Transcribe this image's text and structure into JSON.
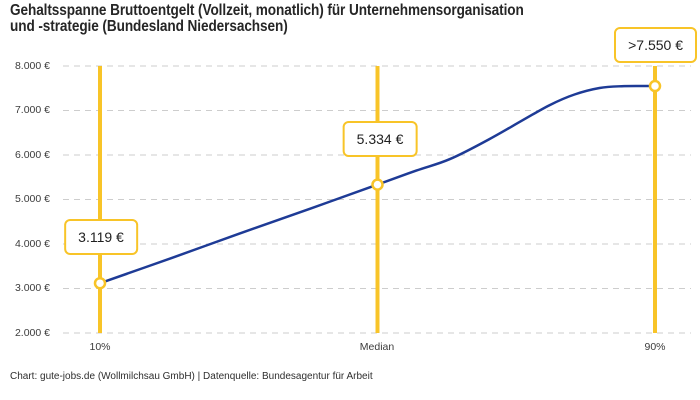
{
  "header": {
    "title_lines": [
      "Gehaltsspanne Bruttoentgelt (Vollzeit, monatlich) für Unternehmensorganisation",
      "und -strategie (Bundesland Niedersachsen)"
    ]
  },
  "chart_data": {
    "type": "line",
    "title": "Gehaltsspanne Bruttoentgelt (Vollzeit, monatlich) für Unternehmensorganisation und -strategie (Bundesland Niedersachsen)",
    "region": "Bundesland Niedersachsen",
    "x_categories": [
      "10%",
      "Median",
      "90%"
    ],
    "y_tick_labels": [
      "8.000 €",
      "7.000 €",
      "6.000 €",
      "5.000 €",
      "4.000 €",
      "3.000 €",
      "2.000 €"
    ],
    "ylim": [
      2000,
      8000
    ],
    "grid": "horizontal-dashed",
    "legend": "none",
    "points": [
      {
        "category": "10%",
        "value": 3119,
        "label": "3.119 €"
      },
      {
        "category": "Median",
        "value": 5334,
        "label": "5.334 €"
      },
      {
        "category": "90%",
        "value": 7550,
        "label": ">7.550 €",
        "censored": true
      }
    ],
    "curve_samples": [
      [
        0.0,
        3119
      ],
      [
        0.13,
        3690
      ],
      [
        0.25,
        4230
      ],
      [
        0.38,
        4800
      ],
      [
        0.5,
        5334
      ],
      [
        0.57,
        5650
      ],
      [
        0.63,
        5905
      ],
      [
        0.7,
        6345
      ],
      [
        0.76,
        6770
      ],
      [
        0.81,
        7120
      ],
      [
        0.855,
        7360
      ],
      [
        0.9,
        7505
      ],
      [
        0.94,
        7545
      ],
      [
        1.0,
        7550
      ]
    ]
  },
  "footer": {
    "credit": "Chart: gute-jobs.de (Wollmilchsau GmbH) | Datenquelle: Bundesagentur für Arbeit"
  },
  "colors": {
    "accent": "#F8C428",
    "line": "#1E3B96",
    "grid": "#CDCDCD",
    "title_text": "#262626",
    "axis_text": "#3C3C3C"
  }
}
